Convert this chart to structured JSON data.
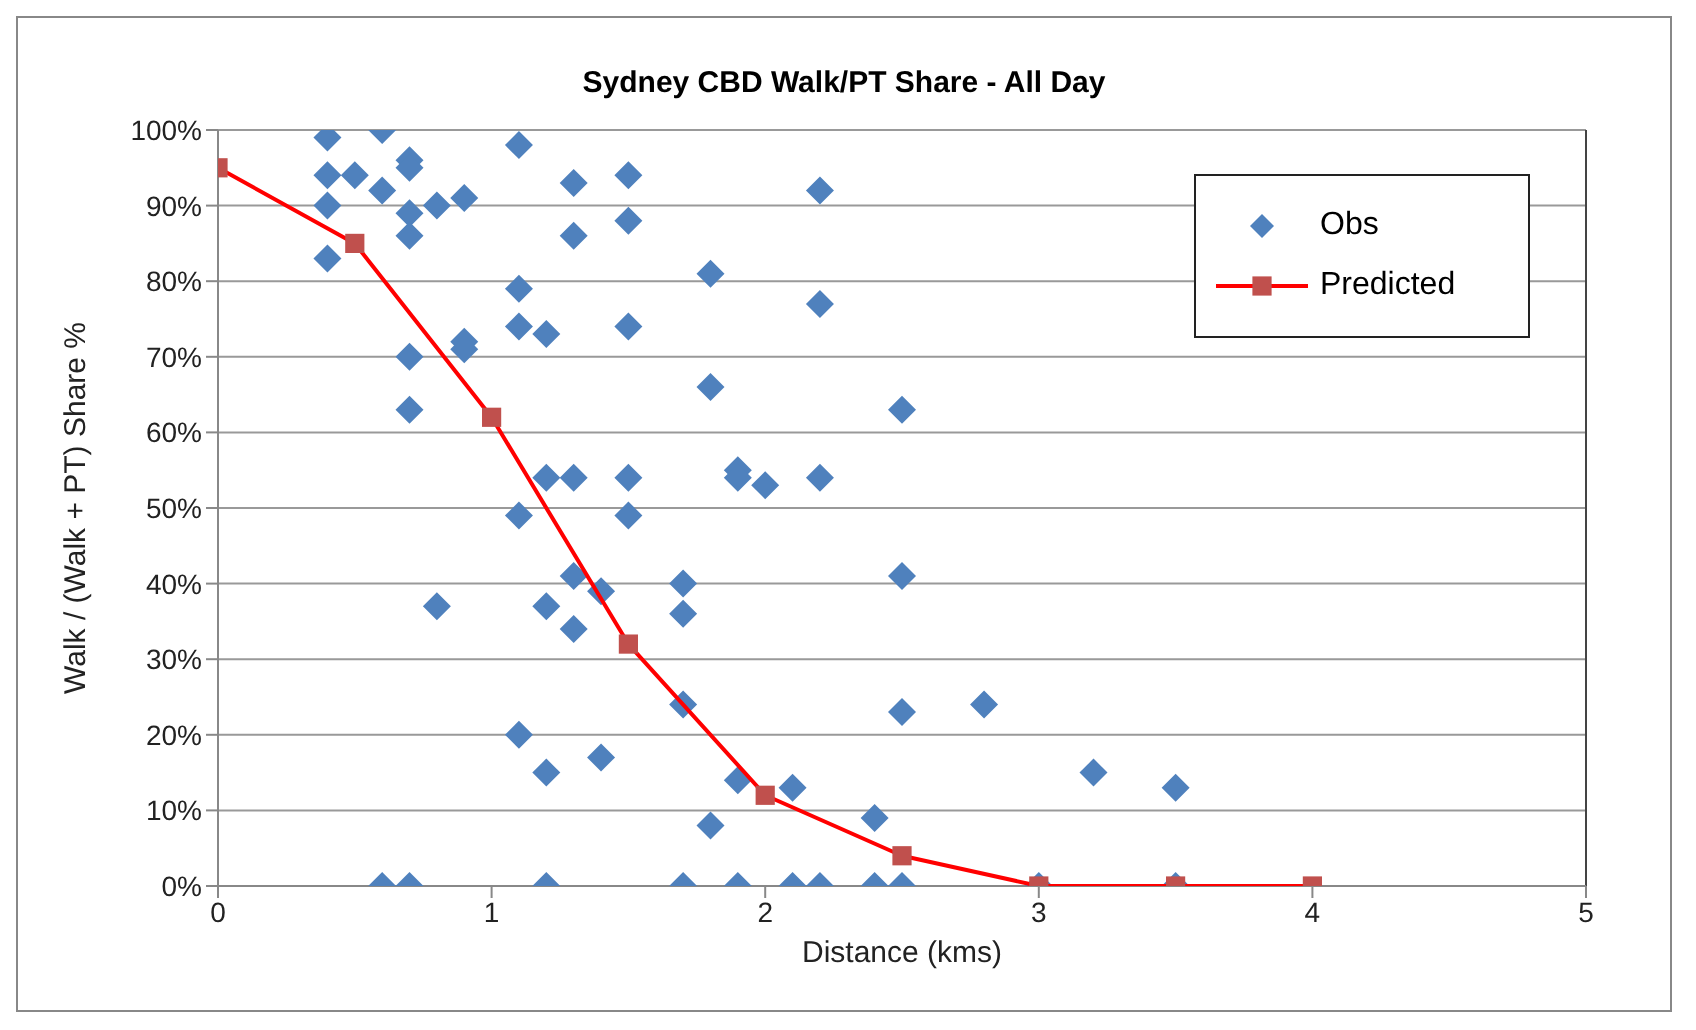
{
  "chart_data": {
    "type": "scatter",
    "title": "Sydney CBD Walk/PT Share - All Day",
    "xlabel": "Distance (kms)",
    "ylabel": "Walk / (Walk + PT) Share %",
    "xlim": [
      0,
      5
    ],
    "xticks": [
      0,
      1,
      2,
      3,
      4,
      5
    ],
    "ylim": [
      0,
      100
    ],
    "yticks": [
      {
        "value": 0,
        "label": "0%"
      },
      {
        "value": 10,
        "label": "10%"
      },
      {
        "value": 20,
        "label": "20%"
      },
      {
        "value": 30,
        "label": "30%"
      },
      {
        "value": 40,
        "label": "40%"
      },
      {
        "value": 50,
        "label": "50%"
      },
      {
        "value": 60,
        "label": "60%"
      },
      {
        "value": 70,
        "label": "70%"
      },
      {
        "value": 80,
        "label": "80%"
      },
      {
        "value": 90,
        "label": "90%"
      },
      {
        "value": 100,
        "label": "100%"
      }
    ],
    "grid": "y",
    "legend": "top right",
    "series": [
      {
        "name": "Obs",
        "type": "scatter",
        "marker": "diamond",
        "color": "#4f81bd",
        "x": [
          0.4,
          0.6,
          0.4,
          0.5,
          0.6,
          0.4,
          0.7,
          0.7,
          0.7,
          0.7,
          0.8,
          0.9,
          0.4,
          0.9,
          0.9,
          0.7,
          0.7,
          0.8,
          0.6,
          0.7,
          1.1,
          1.1,
          1.1,
          1.1,
          1.1,
          1.2,
          1.2,
          1.2,
          1.2,
          1.2,
          1.3,
          1.3,
          1.3,
          1.3,
          1.3,
          1.4,
          1.4,
          1.5,
          1.5,
          1.5,
          1.5,
          1.5,
          1.7,
          1.7,
          1.7,
          1.7,
          1.8,
          1.8,
          1.8,
          1.9,
          1.9,
          1.9,
          1.9,
          2.0,
          2.1,
          2.1,
          2.2,
          2.2,
          2.2,
          2.2,
          2.4,
          2.4,
          2.5,
          2.5,
          2.5,
          2.5,
          2.8,
          3.0,
          3.2,
          3.5,
          3.5
        ],
        "values": [
          99,
          100,
          94,
          94,
          92,
          90,
          96,
          95,
          89,
          86,
          90,
          91,
          83,
          72,
          71,
          70,
          63,
          37,
          0,
          0,
          98,
          79,
          74,
          49,
          20,
          73,
          54,
          37,
          15,
          0,
          93,
          86,
          54,
          41,
          34,
          39,
          17,
          94,
          88,
          74,
          54,
          49,
          40,
          36,
          24,
          0,
          81,
          66,
          8,
          55,
          54,
          14,
          0,
          53,
          13,
          0,
          92,
          77,
          54,
          0,
          9,
          0,
          63,
          41,
          23,
          0,
          24,
          0,
          15,
          13,
          0
        ]
      },
      {
        "name": "Predicted",
        "type": "line",
        "marker": "square",
        "color": "#ff0000",
        "x": [
          0,
          0.5,
          1,
          1.5,
          2,
          2.5,
          3,
          3.5,
          4
        ],
        "values": [
          95,
          85,
          62,
          32,
          12,
          4,
          0,
          0,
          0
        ]
      }
    ]
  }
}
